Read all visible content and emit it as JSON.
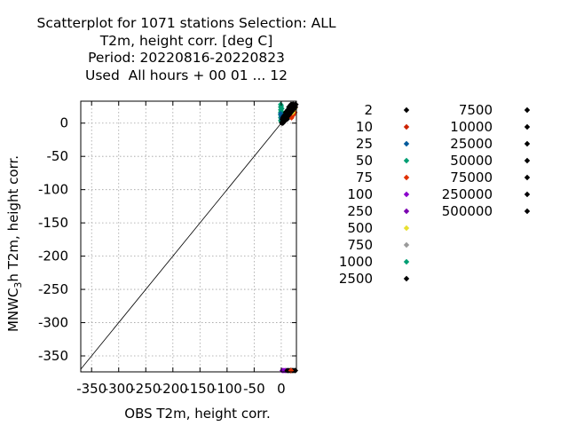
{
  "chart_data": {
    "type": "scatter",
    "title_lines": [
      "Scatterplot for 1071 stations Selection: ALL",
      "T2m, height corr. [deg C]",
      "Period: 20220816-20220823",
      "Used  All hours + 00 01 ... 12"
    ],
    "xlabel": "OBS T2m, height corr.",
    "ylabel_pre": "MNWC",
    "ylabel_sub": "3",
    "ylabel_post": "h T2m, height corr.",
    "xlim": [
      -370,
      28
    ],
    "ylim": [
      -374,
      33
    ],
    "x_ticks": [
      -350,
      -300,
      -250,
      -200,
      -150,
      -100,
      -50,
      0
    ],
    "x_tick_labels": [
      "-350",
      "-300",
      "-250",
      "-200",
      "-150",
      "-100",
      "-50",
      "0"
    ],
    "y_ticks": [
      0,
      -50,
      -100,
      -150,
      -200,
      -250,
      -300,
      -350
    ],
    "y_tick_labels": [
      "0",
      "-50",
      "-100",
      "-150",
      "-200",
      "-250",
      "-300",
      "-350"
    ],
    "grid": true,
    "legend_position": "right",
    "legend": [
      {
        "label": "2",
        "color": "#000000"
      },
      {
        "label": "10",
        "color": "#cc2200"
      },
      {
        "label": "25",
        "color": "#005a9c"
      },
      {
        "label": "50",
        "color": "#009e73"
      },
      {
        "label": "75",
        "color": "#e03000"
      },
      {
        "label": "100",
        "color": "#8a00cc"
      },
      {
        "label": "250",
        "color": "#7a00b0"
      },
      {
        "label": "500",
        "color": "#e8e030"
      },
      {
        "label": "750",
        "color": "#9a9a9a"
      },
      {
        "label": "1000",
        "color": "#009e73"
      },
      {
        "label": "2500",
        "color": "#000000"
      },
      {
        "label": "7500",
        "color": "#000000"
      },
      {
        "label": "10000",
        "color": "#000000"
      },
      {
        "label": "25000",
        "color": "#000000"
      },
      {
        "label": "50000",
        "color": "#000000"
      },
      {
        "label": "75000",
        "color": "#000000"
      },
      {
        "label": "250000",
        "color": "#000000"
      },
      {
        "label": "500000",
        "color": "#000000"
      }
    ],
    "diagonal": [
      [
        -370,
        -370
      ],
      [
        28,
        28
      ]
    ],
    "series": [
      {
        "color": "#009e73",
        "points": [
          [
            -1,
            28
          ],
          [
            -1,
            24
          ],
          [
            -1,
            20
          ],
          [
            -1,
            16
          ],
          [
            -1,
            12
          ],
          [
            -1,
            8
          ],
          [
            0,
            26
          ],
          [
            0,
            18
          ],
          [
            1,
            14
          ],
          [
            -1,
            4
          ],
          [
            0,
            2
          ],
          [
            1,
            22
          ]
        ]
      },
      {
        "color": "#005a9c",
        "points": [
          [
            -1,
            14
          ],
          [
            0,
            10
          ],
          [
            1,
            6
          ]
        ]
      },
      {
        "color": "#e03000",
        "points": [
          [
            18,
            10
          ],
          [
            20,
            14
          ],
          [
            22,
            18
          ],
          [
            24,
            22
          ],
          [
            22,
            12
          ],
          [
            25,
            16
          ],
          [
            19,
            8
          ],
          [
            23,
            26
          ],
          [
            26,
            24
          ]
        ]
      },
      {
        "color": "#e8e030",
        "points": [
          [
            21,
            16
          ],
          [
            23,
            20
          ],
          [
            25,
            22
          ]
        ]
      },
      {
        "color": "#000000",
        "points": [
          [
            2,
            2
          ],
          [
            3,
            4
          ],
          [
            4,
            6
          ],
          [
            5,
            6
          ],
          [
            6,
            8
          ],
          [
            7,
            8
          ],
          [
            8,
            10
          ],
          [
            9,
            10
          ],
          [
            10,
            12
          ],
          [
            11,
            12
          ],
          [
            12,
            14
          ],
          [
            13,
            14
          ],
          [
            14,
            16
          ],
          [
            15,
            16
          ],
          [
            16,
            18
          ],
          [
            17,
            18
          ],
          [
            18,
            20
          ],
          [
            19,
            20
          ],
          [
            20,
            22
          ],
          [
            21,
            22
          ],
          [
            22,
            24
          ],
          [
            23,
            24
          ],
          [
            24,
            26
          ],
          [
            25,
            26
          ],
          [
            26,
            28
          ],
          [
            27,
            28
          ],
          [
            3,
            8
          ],
          [
            5,
            10
          ],
          [
            7,
            12
          ],
          [
            9,
            14
          ],
          [
            11,
            16
          ],
          [
            13,
            18
          ],
          [
            15,
            20
          ],
          [
            17,
            22
          ],
          [
            19,
            24
          ],
          [
            21,
            26
          ],
          [
            23,
            28
          ],
          [
            4,
            2
          ],
          [
            6,
            4
          ],
          [
            8,
            6
          ],
          [
            10,
            8
          ],
          [
            12,
            10
          ],
          [
            14,
            12
          ],
          [
            16,
            14
          ],
          [
            18,
            16
          ],
          [
            20,
            18
          ],
          [
            22,
            20
          ],
          [
            24,
            22
          ],
          [
            26,
            24
          ],
          [
            2,
            6
          ],
          [
            4,
            10
          ],
          [
            6,
            12
          ],
          [
            8,
            16
          ],
          [
            10,
            18
          ],
          [
            12,
            20
          ],
          [
            14,
            24
          ],
          [
            16,
            26
          ],
          [
            18,
            28
          ],
          [
            20,
            28
          ],
          [
            22,
            28
          ],
          [
            1,
            0
          ],
          [
            3,
            0
          ],
          [
            5,
            2
          ],
          [
            7,
            4
          ],
          [
            9,
            6
          ],
          [
            11,
            6
          ]
        ]
      },
      {
        "color": "#8a00cc",
        "points": [
          [
            2,
            -372
          ],
          [
            5,
            -372
          ],
          [
            8,
            -372
          ]
        ]
      },
      {
        "color": "#000000",
        "points": [
          [
            11,
            -372
          ],
          [
            14,
            -372
          ],
          [
            17,
            -372
          ],
          [
            20,
            -372
          ],
          [
            23,
            -372
          ],
          [
            26,
            -372
          ]
        ]
      },
      {
        "color": "#e03000",
        "points": [
          [
            18,
            -372
          ]
        ]
      }
    ]
  }
}
